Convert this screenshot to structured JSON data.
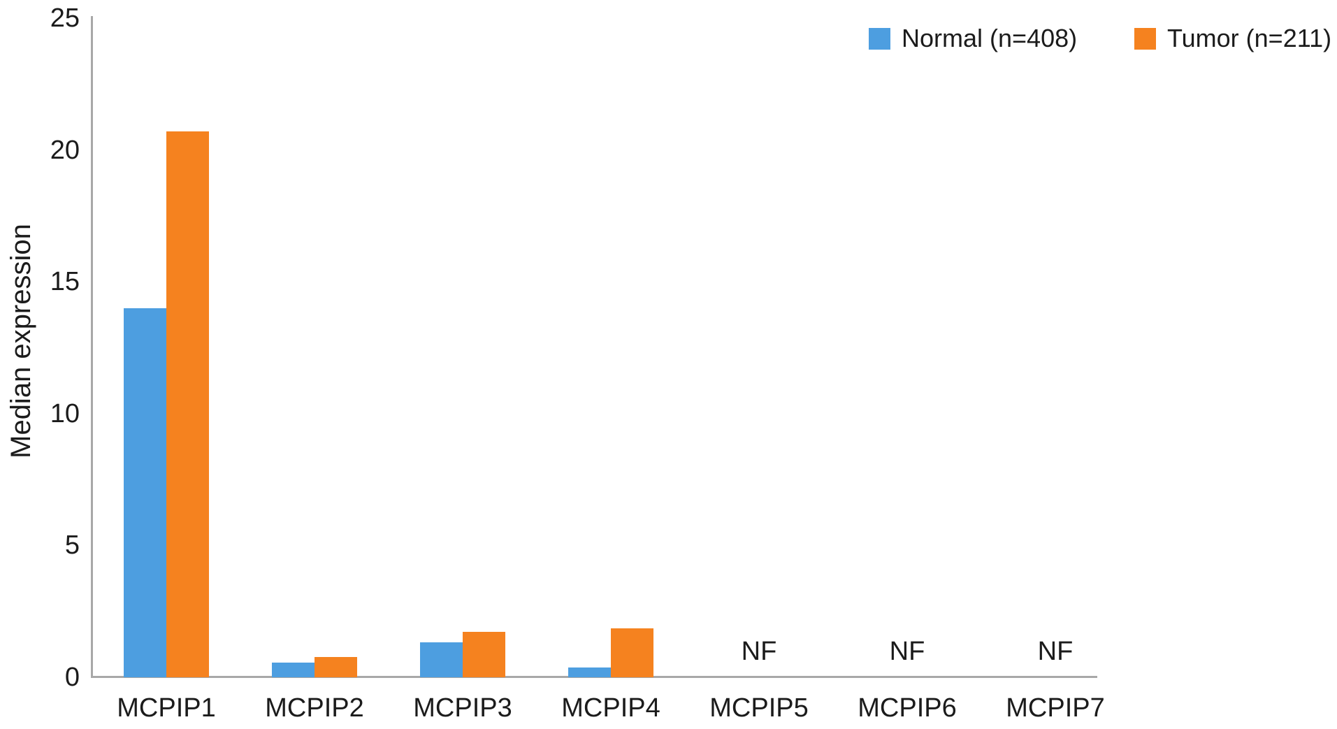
{
  "chart_data": {
    "type": "bar",
    "title": "",
    "ylabel": "Median expression",
    "xlabel": "",
    "categories": [
      "MCPIP1",
      "MCPIP2",
      "MCPIP3",
      "MCPIP4",
      "MCPIP5",
      "MCPIP6",
      "MCPIP7"
    ],
    "series": [
      {
        "name": "Normal (n=408)",
        "color": "#4D9EE0",
        "values": [
          14.0,
          0.56,
          1.33,
          0.37,
          null,
          null,
          null
        ]
      },
      {
        "name": "Tumor (n=211)",
        "color": "#F5821F",
        "values": [
          20.7,
          0.77,
          1.72,
          1.85,
          null,
          null,
          null
        ]
      }
    ],
    "not_found_label": "NF",
    "not_found_categories": [
      "MCPIP5",
      "MCPIP6",
      "MCPIP7"
    ],
    "ylim": [
      0,
      25
    ],
    "yticks": [
      0,
      5,
      10,
      15,
      20,
      25
    ],
    "grid": false,
    "legend_position": "top-right",
    "axis_color": "#A8A8A8",
    "text_color": "#1B1B1B",
    "background_color": "#FFFFFF"
  }
}
